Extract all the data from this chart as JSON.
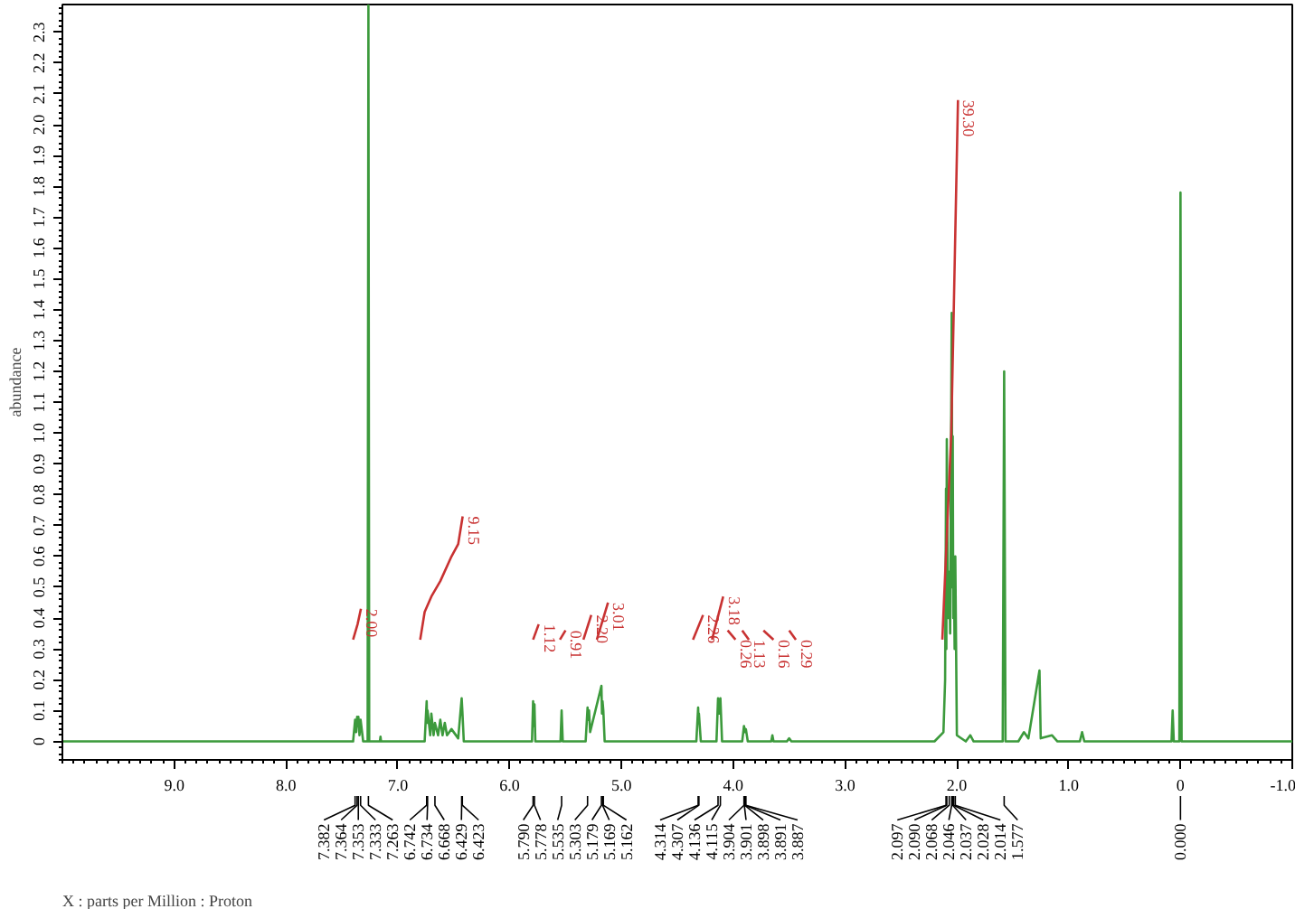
{
  "chart_data": {
    "type": "line",
    "ylabel": "abundance",
    "xlim": [
      10.0,
      -1.0
    ],
    "xticks": [
      {
        "value": 9,
        "label": "9.0"
      },
      {
        "value": 8,
        "label": "8.0"
      },
      {
        "value": 7,
        "label": "7.0"
      },
      {
        "value": 6,
        "label": "6.0"
      },
      {
        "value": 5,
        "label": "5.0"
      },
      {
        "value": 4,
        "label": "4.0"
      },
      {
        "value": 3,
        "label": "3.0"
      },
      {
        "value": 2,
        "label": "2.0"
      },
      {
        "value": 1,
        "label": "1.0"
      },
      0,
      {
        "value": -1,
        "label": "-1.0"
      }
    ],
    "ylim": [
      -0.06,
      2.39
    ],
    "yticks": [
      0,
      0.1,
      0.2,
      0.3,
      0.4,
      0.5,
      0.6,
      0.7,
      0.8,
      0.9,
      {
        "value": 1,
        "label": "1.0"
      },
      1.1,
      1.2,
      1.3,
      1.4,
      1.5,
      1.6,
      1.7,
      1.8,
      1.9,
      {
        "value": 2,
        "label": "2.0"
      },
      2.1,
      2.2,
      2.3
    ],
    "series": [
      {
        "color": "#3c9a3c",
        "x": [
          10.0,
          7.4,
          7.382,
          7.372,
          7.364,
          7.358,
          7.353,
          7.343,
          7.333,
          7.31,
          7.27,
          7.263,
          7.256,
          7.16,
          7.155,
          7.15,
          6.76,
          6.742,
          6.738,
          6.734,
          6.71,
          6.7,
          6.68,
          6.668,
          6.64,
          6.62,
          6.6,
          6.58,
          6.56,
          6.52,
          6.46,
          6.429,
          6.423,
          6.41,
          5.8,
          5.79,
          5.784,
          5.778,
          5.77,
          5.545,
          5.535,
          5.525,
          5.32,
          5.303,
          5.297,
          5.29,
          5.28,
          5.179,
          5.174,
          5.169,
          5.162,
          5.15,
          4.33,
          4.314,
          4.31,
          4.307,
          4.29,
          4.15,
          4.136,
          4.125,
          4.115,
          4.1,
          3.92,
          3.904,
          3.895,
          3.887,
          3.87,
          3.66,
          3.65,
          3.64,
          3.52,
          3.5,
          3.48,
          2.2,
          2.12,
          2.105,
          2.097,
          2.094,
          2.09,
          2.08,
          2.068,
          2.06,
          2.046,
          2.041,
          2.037,
          2.032,
          2.028,
          2.02,
          2.014,
          2.0,
          1.92,
          1.88,
          1.85,
          1.59,
          1.577,
          1.565,
          1.45,
          1.4,
          1.36,
          1.261,
          1.25,
          1.15,
          1.1,
          0.9,
          0.88,
          0.86,
          0.08,
          0.07,
          0.06,
          0.01,
          0.0,
          -0.01,
          -1.0
        ],
        "values": [
          0,
          0,
          0.07,
          0.03,
          0.08,
          0.05,
          0.08,
          0.02,
          0.07,
          0,
          0,
          2.39,
          0,
          0,
          0.015,
          0,
          0,
          0.13,
          0.06,
          0.1,
          0.02,
          0.09,
          0.02,
          0.06,
          0.02,
          0.07,
          0.02,
          0.06,
          0.02,
          0.04,
          0.01,
          0.14,
          0.1,
          0,
          0,
          0.13,
          0.05,
          0.12,
          0,
          0,
          0.1,
          0,
          0,
          0.11,
          0.07,
          0.1,
          0.03,
          0.18,
          0.09,
          0.13,
          0.1,
          0,
          0,
          0.11,
          0.06,
          0.09,
          0,
          0,
          0.14,
          0.09,
          0.14,
          0,
          0,
          0.05,
          0.03,
          0.04,
          0,
          0,
          0.02,
          0,
          0,
          0.01,
          0,
          0,
          0.03,
          0.2,
          0.82,
          0.3,
          0.98,
          0.4,
          0.55,
          0.35,
          1.39,
          0.5,
          0.99,
          0.4,
          0.6,
          0.3,
          0.6,
          0.02,
          0,
          0.02,
          0,
          0,
          1.2,
          0,
          0,
          0.03,
          0.01,
          0.23,
          0.01,
          0.02,
          0,
          0,
          0.03,
          0,
          0,
          0.1,
          0,
          0,
          1.78,
          0,
          0
        ]
      },
      {
        "name": "2.00",
        "color": "#c83230",
        "x": [
          7.4,
          7.36,
          7.33
        ],
        "values": [
          0.33,
          0.38,
          0.43
        ]
      },
      {
        "name": "9.15",
        "color": "#c83131",
        "x": [
          6.8,
          6.76,
          6.7,
          6.62,
          6.52,
          6.46,
          6.42
        ],
        "values": [
          0.33,
          0.42,
          0.47,
          0.52,
          0.6,
          0.64,
          0.73
        ]
      },
      {
        "name": "1.12",
        "color": "#c83232",
        "x": [
          5.79,
          5.74
        ],
        "values": [
          0.33,
          0.38
        ]
      },
      {
        "name": "0.91",
        "color": "#c83232",
        "x": [
          5.55,
          5.5
        ],
        "values": [
          0.33,
          0.36
        ]
      },
      {
        "name": "2.20",
        "color": "#c83232",
        "x": [
          5.34,
          5.27
        ],
        "values": [
          0.33,
          0.41
        ]
      },
      {
        "name": "3.01",
        "color": "#c83232",
        "x": [
          5.22,
          5.12
        ],
        "values": [
          0.33,
          0.45
        ]
      },
      {
        "name": "2.26",
        "color": "#c83232",
        "x": [
          4.36,
          4.27
        ],
        "values": [
          0.33,
          0.41
        ]
      },
      {
        "name": "3.18",
        "color": "#c83232",
        "x": [
          4.19,
          4.09
        ],
        "values": [
          0.33,
          0.47
        ]
      },
      {
        "name": "0.26",
        "color": "#c83232",
        "x": [
          4.05,
          3.98
        ],
        "values": [
          0.36,
          0.33
        ]
      },
      {
        "name": "1.13",
        "color": "#c83232",
        "x": [
          3.92,
          3.86
        ],
        "values": [
          0.36,
          0.33
        ]
      },
      {
        "name": "0.16",
        "color": "#c83232",
        "x": [
          3.73,
          3.64
        ],
        "values": [
          0.36,
          0.33
        ]
      },
      {
        "name": "0.29",
        "color": "#c83232",
        "x": [
          3.5,
          3.44
        ],
        "values": [
          0.36,
          0.33
        ]
      },
      {
        "name": "39.30",
        "color": "#c93333",
        "x": [
          2.13,
          2.05,
          1.99
        ],
        "values": [
          0.33,
          1.0,
          2.08
        ]
      }
    ],
    "annotations": [
      "X : parts per Million : Proton",
      {
        "text": "7.382",
        "x": 7.382
      },
      {
        "text": "7.364",
        "x": 7.364
      },
      {
        "text": "7.353",
        "x": 7.353
      },
      {
        "text": "7.333",
        "x": 7.333
      },
      {
        "text": "7.263",
        "x": 7.263
      },
      {
        "text": "6.742",
        "x": 6.742
      },
      {
        "text": "6.734",
        "x": 6.734
      },
      {
        "text": "6.668",
        "x": 6.668
      },
      {
        "text": "6.429",
        "x": 6.429
      },
      {
        "text": "6.423",
        "x": 6.423
      },
      {
        "text": "5.790",
        "x": 5.79
      },
      {
        "text": "5.778",
        "x": 5.778
      },
      {
        "text": "5.535",
        "x": 5.535
      },
      {
        "text": "5.303",
        "x": 5.303
      },
      {
        "text": "5.179",
        "x": 5.179
      },
      {
        "text": "5.169",
        "x": 5.169
      },
      {
        "text": "5.162",
        "x": 5.162
      },
      {
        "text": "4.314",
        "x": 4.314
      },
      {
        "text": "4.307",
        "x": 4.307
      },
      {
        "text": "4.136",
        "x": 4.136
      },
      {
        "text": "4.115",
        "x": 4.115
      },
      {
        "text": "3.904",
        "x": 3.904
      },
      {
        "text": "3.901",
        "x": 3.901
      },
      {
        "text": "3.898",
        "x": 3.898
      },
      {
        "text": "3.891",
        "x": 3.891
      },
      {
        "text": "3.887",
        "x": 3.887
      },
      {
        "text": "2.097",
        "x": 2.097
      },
      {
        "text": "2.090",
        "x": 2.09
      },
      {
        "text": "2.068",
        "x": 2.068
      },
      {
        "text": "2.046",
        "x": 2.046
      },
      {
        "text": "2.037",
        "x": 2.037
      },
      {
        "text": "2.028",
        "x": 2.028
      },
      {
        "text": "2.014",
        "x": 2.014
      },
      {
        "text": "1.577",
        "x": 1.577
      },
      {
        "text": "0.000",
        "x": 0.0
      }
    ]
  }
}
